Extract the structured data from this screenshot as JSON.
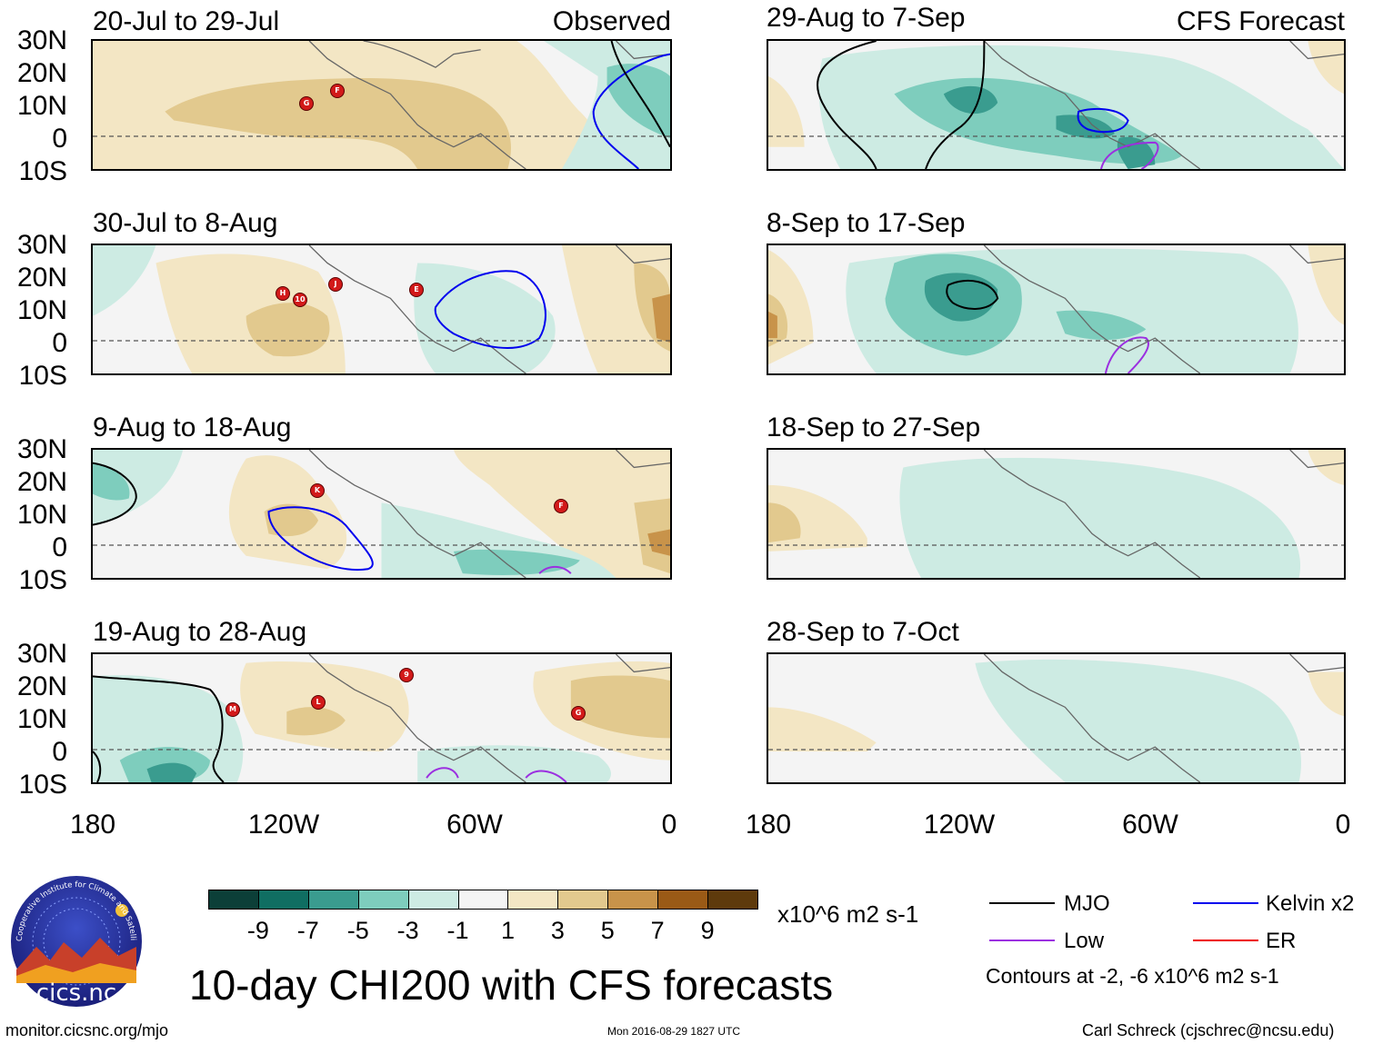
{
  "header": {
    "observed_label": "Observed",
    "forecast_label": "CFS Forecast"
  },
  "colors": {
    "dry_1": "#f3e6c4",
    "dry_2": "#e2c98e",
    "dry_3": "#c8934a",
    "wet_1": "#cdebe3",
    "wet_2": "#7ecdbd",
    "wet_3": "#3a9c8f",
    "background": "#f4f4f4",
    "mjo": "#000000",
    "kelvin": "#0000ee",
    "low": "#9b30e0",
    "er": "#ee0000"
  },
  "panels": {
    "observed": [
      {
        "period": "20-Jul to 29-Jul",
        "storms": [
          "G",
          "F"
        ]
      },
      {
        "period": "30-Jul to 8-Aug",
        "storms": [
          "H",
          "10",
          "J",
          "E"
        ]
      },
      {
        "period": "9-Aug to 18-Aug",
        "storms": [
          "K",
          "F"
        ]
      },
      {
        "period": "19-Aug to 28-Aug",
        "storms": [
          "M",
          "L",
          "9",
          "G"
        ]
      }
    ],
    "forecast": [
      {
        "period": "29-Aug to 7-Sep"
      },
      {
        "period": "8-Sep to 17-Sep"
      },
      {
        "period": "18-Sep to 27-Sep"
      },
      {
        "period": "28-Sep to 7-Oct"
      }
    ]
  },
  "axes": {
    "lat_labels": [
      "30N",
      "20N",
      "10N",
      "0",
      "10S"
    ],
    "lon_labels": [
      "180",
      "120W",
      "60W",
      "0"
    ]
  },
  "colorbar": {
    "labels": [
      "-9",
      "-7",
      "-5",
      "-3",
      "-1",
      "1",
      "3",
      "5",
      "7",
      "9"
    ],
    "colors": [
      "#0c3f38",
      "#106e62",
      "#3a9c8f",
      "#7ecdbd",
      "#cdebe3",
      "#f4f4f4",
      "#f3e6c4",
      "#e2c98e",
      "#c8934a",
      "#9a5a16",
      "#5e3a0c"
    ],
    "units": "x10^6 m2 s-1"
  },
  "legend": {
    "mjo": "MJO",
    "kelvin": "Kelvin x2",
    "low": "Low",
    "er": "ER",
    "contours_note": "Contours at -2, -6 x10^6 m2 s-1"
  },
  "footer": {
    "title": "10-day CHI200 with CFS forecasts",
    "url": "monitor.cicsnc.org/mjo",
    "timestamp": "Mon 2016-08-29 1827 UTC",
    "author": "Carl Schreck (cjschrec@ncsu.edu)",
    "logo_text": "cics.nc",
    "logo_ring": "Cooperative Institute for Climate and Satellites"
  }
}
